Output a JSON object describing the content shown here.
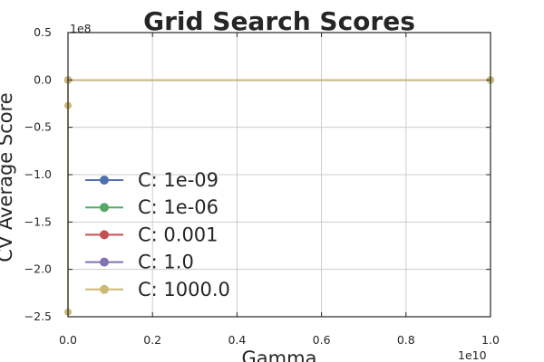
{
  "chart_data": {
    "type": "line",
    "title": "Grid Search Scores",
    "xlabel": "Gamma",
    "ylabel": "CV Average Score",
    "x_offset_label": "1e10",
    "y_offset_label": "1e8",
    "xlim": [
      0,
      1.0
    ],
    "ylim": [
      -2.5,
      0.5
    ],
    "x_scale_note": "x values in units of 1e10",
    "y_scale_note": "y values in units of 1e8",
    "x_ticks": [
      0.0,
      0.2,
      0.4,
      0.6,
      0.8,
      1.0
    ],
    "x_tick_labels": [
      "0.0",
      "0.2",
      "0.4",
      "0.6",
      "0.8",
      "1.0"
    ],
    "y_ticks": [
      0.5,
      0.0,
      -0.5,
      -1.0,
      -1.5,
      -2.0,
      -2.5
    ],
    "y_tick_labels": [
      "0.5",
      "0.0",
      "−0.5",
      "−1.0",
      "−1.5",
      "−2.0",
      "−2.5"
    ],
    "grid": true,
    "legend_position": "lower-left",
    "x": [
      0.0,
      0.0,
      0.0,
      1.0
    ],
    "series": [
      {
        "name": "C: 1e-09",
        "color": "#4c72b0",
        "values": [
          0.0,
          0.0,
          0.0,
          0.0
        ]
      },
      {
        "name": "C: 1e-06",
        "color": "#55a868",
        "values": [
          0.0,
          0.0,
          0.0,
          0.0
        ]
      },
      {
        "name": "C: 0.001",
        "color": "#c44e52",
        "values": [
          0.0,
          0.0,
          0.0,
          0.0
        ]
      },
      {
        "name": "C: 1.0",
        "color": "#8172b2",
        "values": [
          0.0,
          0.0,
          0.0,
          0.0
        ]
      },
      {
        "name": "C: 1000.0",
        "color": "#ccb974",
        "values": [
          -2.45,
          -0.27,
          0.0,
          0.0
        ]
      }
    ]
  }
}
